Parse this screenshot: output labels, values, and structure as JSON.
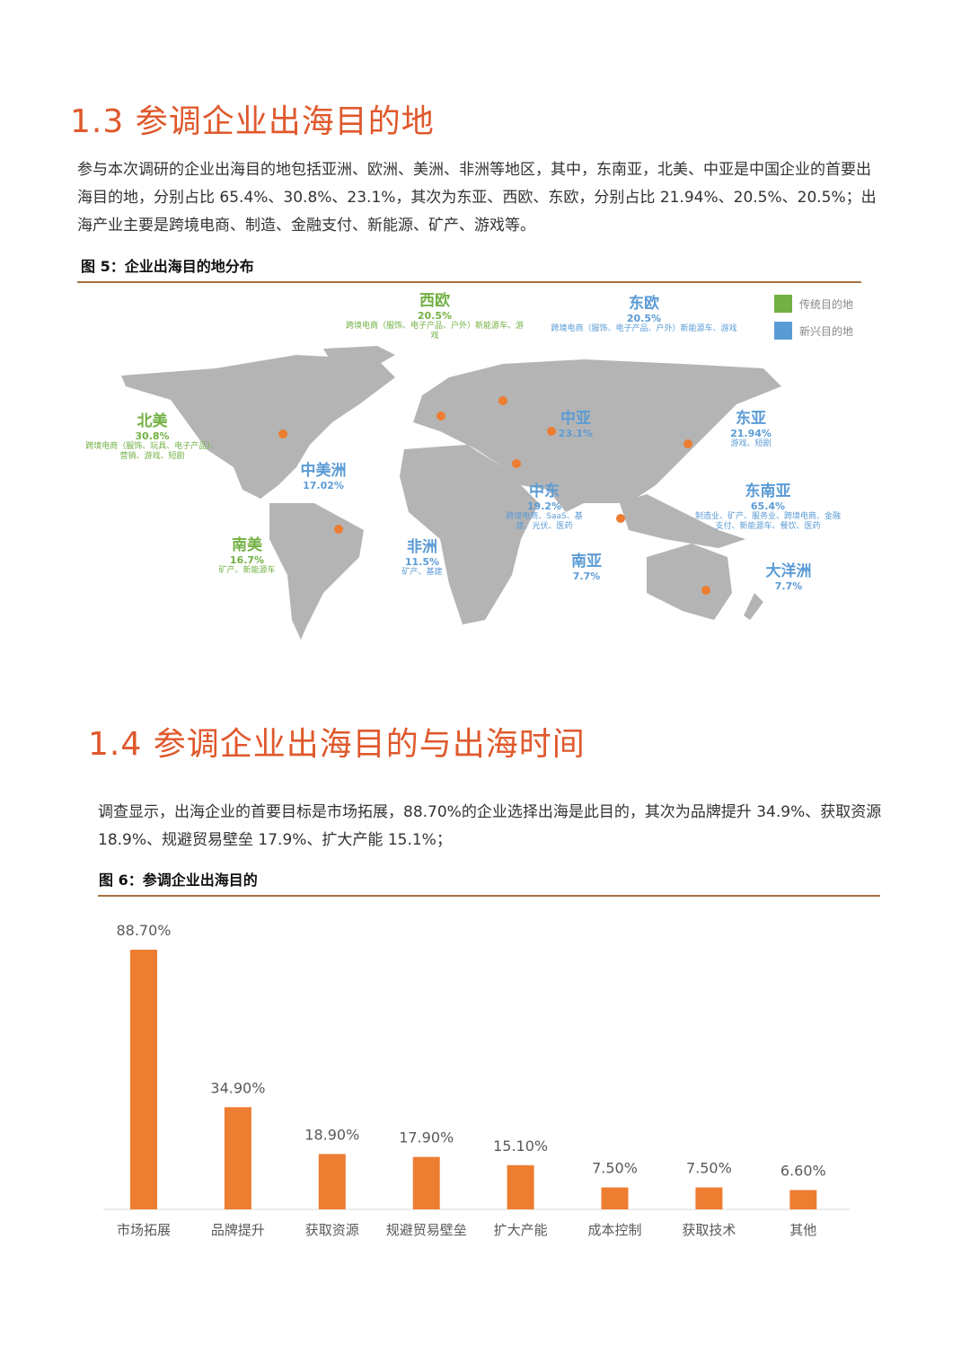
{
  "section1": {
    "title": "1.3 参调企业出海目的地",
    "paragraph": "参与本次调研的企业出海目的地包括亚洲、欧洲、美洲、非洲等地区，其中，东南亚，北美、中亚是中国企业的首要出海目的地，分别占比 65.4%、30.8%、23.1%，其次为东亚、西欧、东欧，分别占比 21.94%、20.5%、20.5%；出海产业主要是跨境电商、制造、金融支付、新能源、矿产、游戏等。",
    "figure_title": "图 5：企业出海目的地分布",
    "legend": [
      {
        "label": "传统目的地",
        "color": "#72b044"
      },
      {
        "label": "新兴目的地",
        "color": "#5b9bd5"
      }
    ],
    "regions": [
      {
        "name": "西欧",
        "value": "20.5%",
        "desc": "跨境电商（服饰、电子产品、户外）新能源车、游戏",
        "type": "traditional"
      },
      {
        "name": "东欧",
        "value": "20.5%",
        "desc": "跨境电商（服饰、电子产品、户外）新能源车、游戏",
        "type": "emerging"
      },
      {
        "name": "北美",
        "value": "30.8%",
        "desc": "跨境电商（服饰、玩具、电子产品）、营销、游戏、短剧",
        "type": "traditional"
      },
      {
        "name": "中美洲",
        "value": "17.02%",
        "desc": "",
        "type": "emerging"
      },
      {
        "name": "南美",
        "value": "16.7%",
        "desc": "矿产、新能源车",
        "type": "traditional"
      },
      {
        "name": "非洲",
        "value": "11.5%",
        "desc": "矿产、基建",
        "type": "emerging"
      },
      {
        "name": "中亚",
        "value": "23.1%",
        "desc": "",
        "type": "emerging"
      },
      {
        "name": "中东",
        "value": "19.2%",
        "desc": "跨境电商、SaaS、基建、光伏、医药",
        "type": "emerging"
      },
      {
        "name": "南亚",
        "value": "7.7%",
        "desc": "",
        "type": "emerging"
      },
      {
        "name": "东亚",
        "value": "21.94%",
        "desc": "游戏、短剧",
        "type": "emerging"
      },
      {
        "name": "东南亚",
        "value": "65.4%",
        "desc": "制造业、矿产、服务业、跨境电商、金融支付、新能源车、餐饮、医药",
        "type": "emerging"
      },
      {
        "name": "大洋洲",
        "value": "7.7%",
        "desc": "",
        "type": "emerging"
      }
    ]
  },
  "section2": {
    "title": "1.4 参调企业出海目的与出海时间",
    "paragraph": "调查显示，出海企业的首要目标是市场拓展，88.70%的企业选择出海是此目的，其次为品牌提升 34.9%、获取资源 18.9%、规避贸易壁垒 17.9%、扩大产能 15.1%；",
    "figure_title": "图 6：参调企业出海目的"
  },
  "chart_data": {
    "type": "bar",
    "categories": [
      "市场拓展",
      "品牌提升",
      "获取资源",
      "规避贸易壁垒",
      "扩大产能",
      "成本控制",
      "获取技术",
      "其他"
    ],
    "values": [
      88.7,
      34.9,
      18.9,
      17.9,
      15.1,
      7.5,
      7.5,
      6.6
    ],
    "data_labels": [
      "88.70%",
      "34.90%",
      "18.90%",
      "17.90%",
      "15.10%",
      "7.50%",
      "7.50%",
      "6.60%"
    ],
    "ylim": [
      0,
      100
    ],
    "grid": false,
    "bar_color": "#ed7d31"
  }
}
